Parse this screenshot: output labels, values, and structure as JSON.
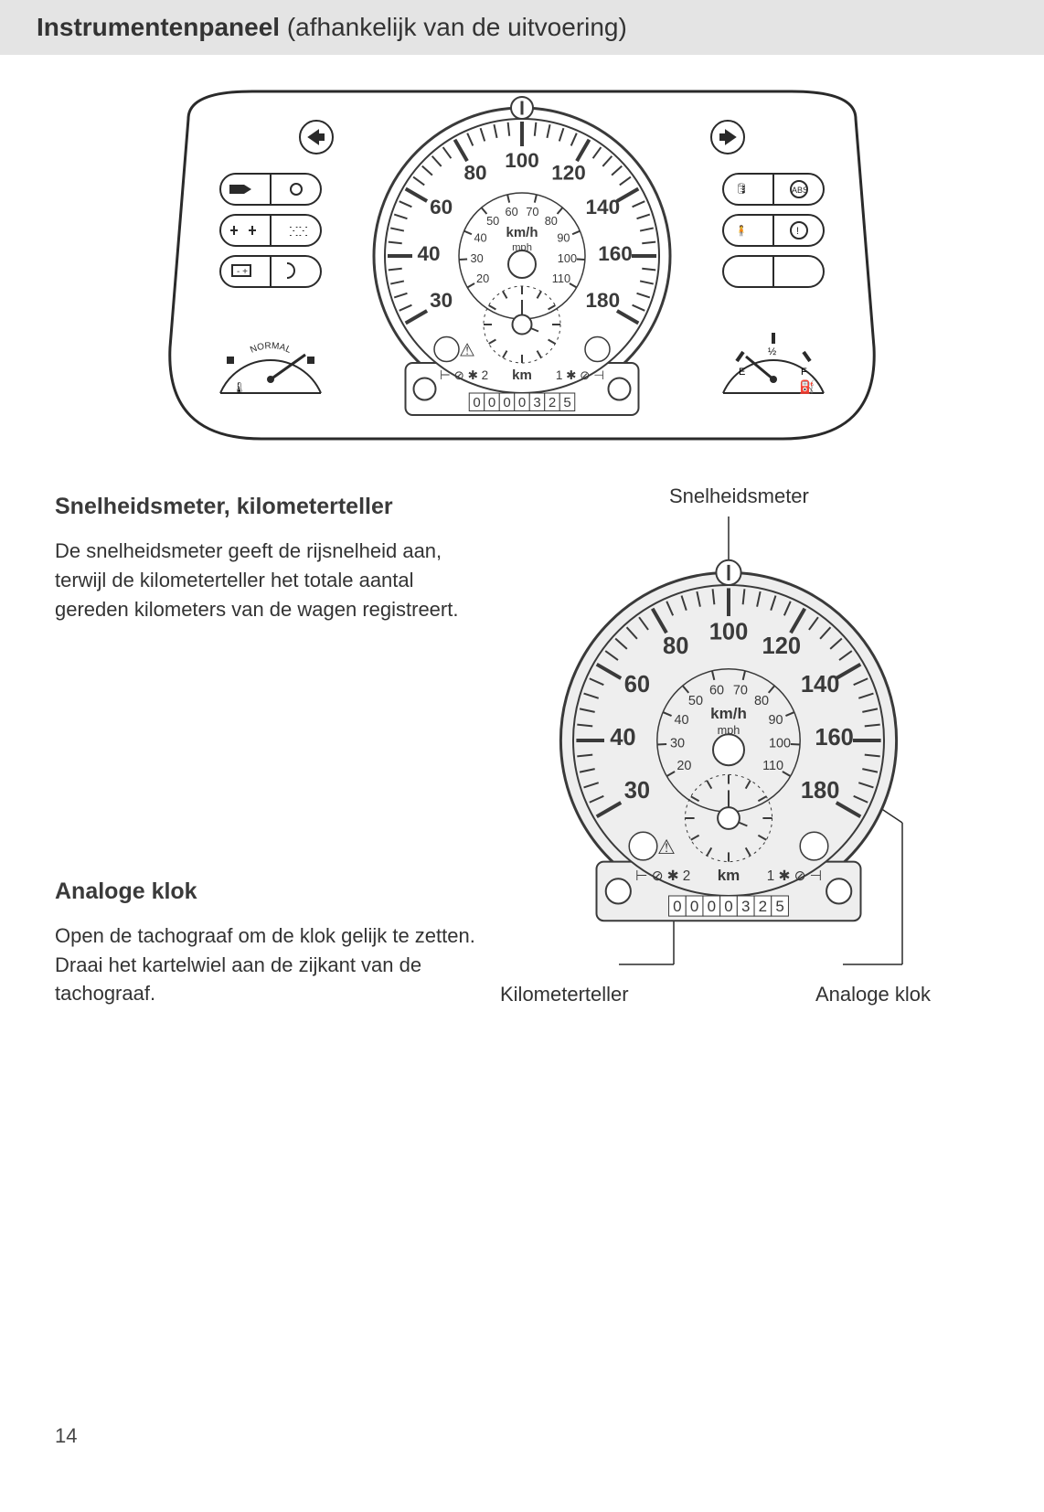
{
  "header": {
    "title_bold": "Instrumentenpaneel",
    "title_light": " (afhankelijk van de uitvoering)"
  },
  "sections": {
    "speedo": {
      "heading": "Snelheidsmeter, kilometerteller",
      "body": "De snelheidsmeter geeft de rijsnelheid aan, terwijl de kilometerteller het totale aantal gereden kilometers van de wagen registreert."
    },
    "clock": {
      "heading": "Analoge klok",
      "body": "Open de tachograaf om de klok gelijk te zetten. Draai het kartelwiel aan de zijkant van de tachograaf."
    }
  },
  "callouts": {
    "top": "Snelheidsmeter",
    "bottom_left": "Kilometerteller",
    "bottom_right": "Analoge klok"
  },
  "gauge": {
    "outer_ticks_kmh": [
      "30",
      "40",
      "60",
      "80",
      "100",
      "120",
      "140",
      "160",
      "180"
    ],
    "inner_ticks_mph": [
      "20",
      "30",
      "40",
      "50",
      "60",
      "70",
      "80",
      "90",
      "100",
      "110"
    ],
    "unit_top": "km/h",
    "unit_bottom": "mph",
    "odo_label": "km",
    "odo_digits": "0000325",
    "trip_right": "1",
    "trip_left": "2",
    "colors": {
      "stroke": "#3a3a3a",
      "face_fill": "#ffffff",
      "face_fill_detail": "#eeeeee",
      "bg": "#ffffff"
    }
  },
  "fuel_gauge": {
    "E": "E",
    "F": "F",
    "half": "½"
  },
  "temp_gauge": {
    "label": "NORMAL"
  },
  "page_number": "14"
}
